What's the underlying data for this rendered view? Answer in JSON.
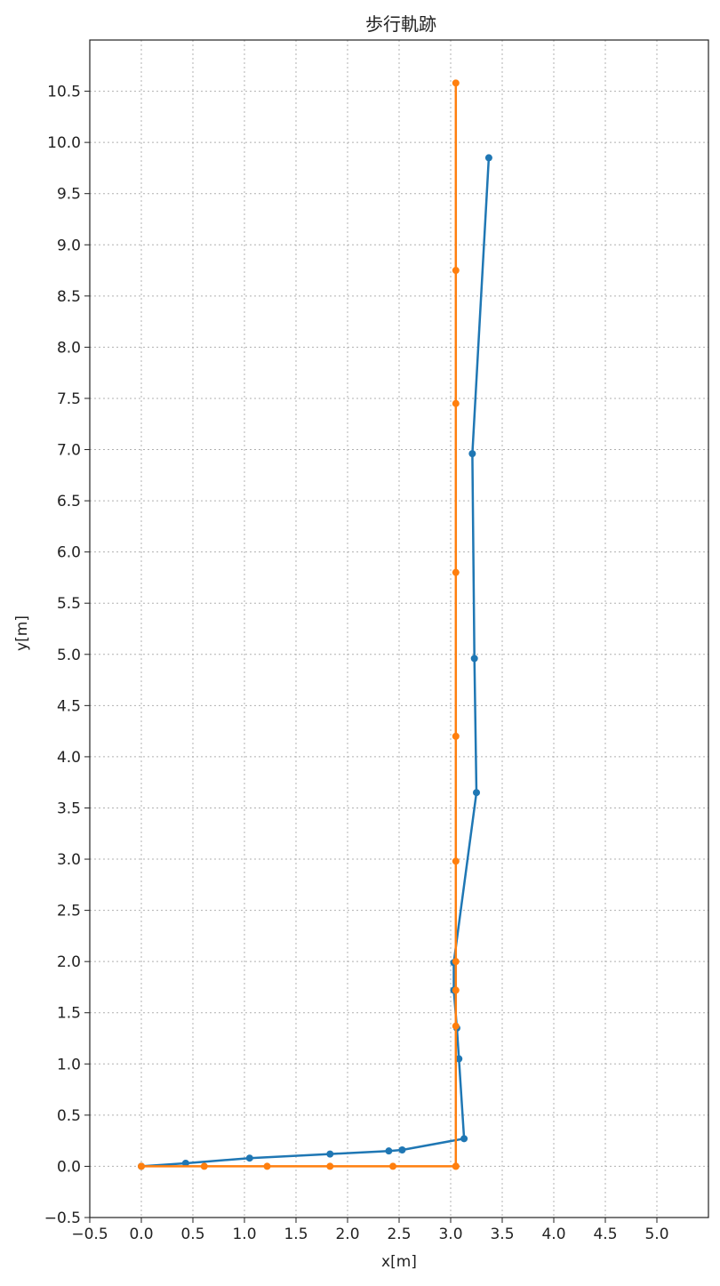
{
  "chart_data": {
    "type": "line",
    "title": "歩行軌跡",
    "xlabel": "x[m]",
    "ylabel": "y[m]",
    "xlim": [
      -0.5,
      5.5
    ],
    "ylim": [
      -0.5,
      11.0
    ],
    "xticks": [
      -0.5,
      0.0,
      0.5,
      1.0,
      1.5,
      2.0,
      2.5,
      3.0,
      3.5,
      4.0,
      4.5,
      5.0
    ],
    "yticks": [
      -0.5,
      0.0,
      0.5,
      1.0,
      1.5,
      2.0,
      2.5,
      3.0,
      3.5,
      4.0,
      4.5,
      5.0,
      5.5,
      6.0,
      6.5,
      7.0,
      7.5,
      8.0,
      8.5,
      9.0,
      9.5,
      10.0,
      10.5
    ],
    "xtick_labels": [
      "−0.5",
      "0.0",
      "0.5",
      "1.0",
      "1.5",
      "2.0",
      "2.5",
      "3.0",
      "3.5",
      "4.0",
      "4.5",
      "5.0"
    ],
    "ytick_labels": [
      "−0.5",
      "0.0",
      "0.5",
      "1.0",
      "1.5",
      "2.0",
      "2.5",
      "3.0",
      "3.5",
      "4.0",
      "4.5",
      "5.0",
      "5.5",
      "6.0",
      "6.5",
      "7.0",
      "7.5",
      "8.0",
      "8.5",
      "9.0",
      "9.5",
      "10.0",
      "10.5"
    ],
    "grid": true,
    "series": [
      {
        "color": "#1f77b4",
        "marker": "circle",
        "x": [
          0.0,
          0.43,
          1.05,
          1.83,
          2.4,
          2.53,
          3.13,
          3.08,
          3.06,
          3.03,
          3.03,
          3.25,
          3.23,
          3.21,
          3.37
        ],
        "y": [
          0.0,
          0.03,
          0.08,
          0.12,
          0.15,
          0.16,
          0.27,
          1.05,
          1.35,
          1.72,
          1.99,
          3.65,
          4.96,
          6.96,
          9.85
        ]
      },
      {
        "color": "#ff7f0e",
        "marker": "circle",
        "x": [
          0.0,
          0.61,
          1.22,
          1.83,
          2.44,
          3.05,
          3.05,
          3.05,
          3.05,
          3.05,
          3.05,
          3.05,
          3.05,
          3.05,
          3.05,
          3.05
        ],
        "y": [
          0.0,
          0.0,
          0.0,
          0.0,
          0.0,
          0.0,
          1.37,
          1.72,
          2.98,
          4.2,
          5.8,
          7.45,
          8.75,
          10.58,
          2.0,
          0.0
        ]
      }
    ]
  }
}
